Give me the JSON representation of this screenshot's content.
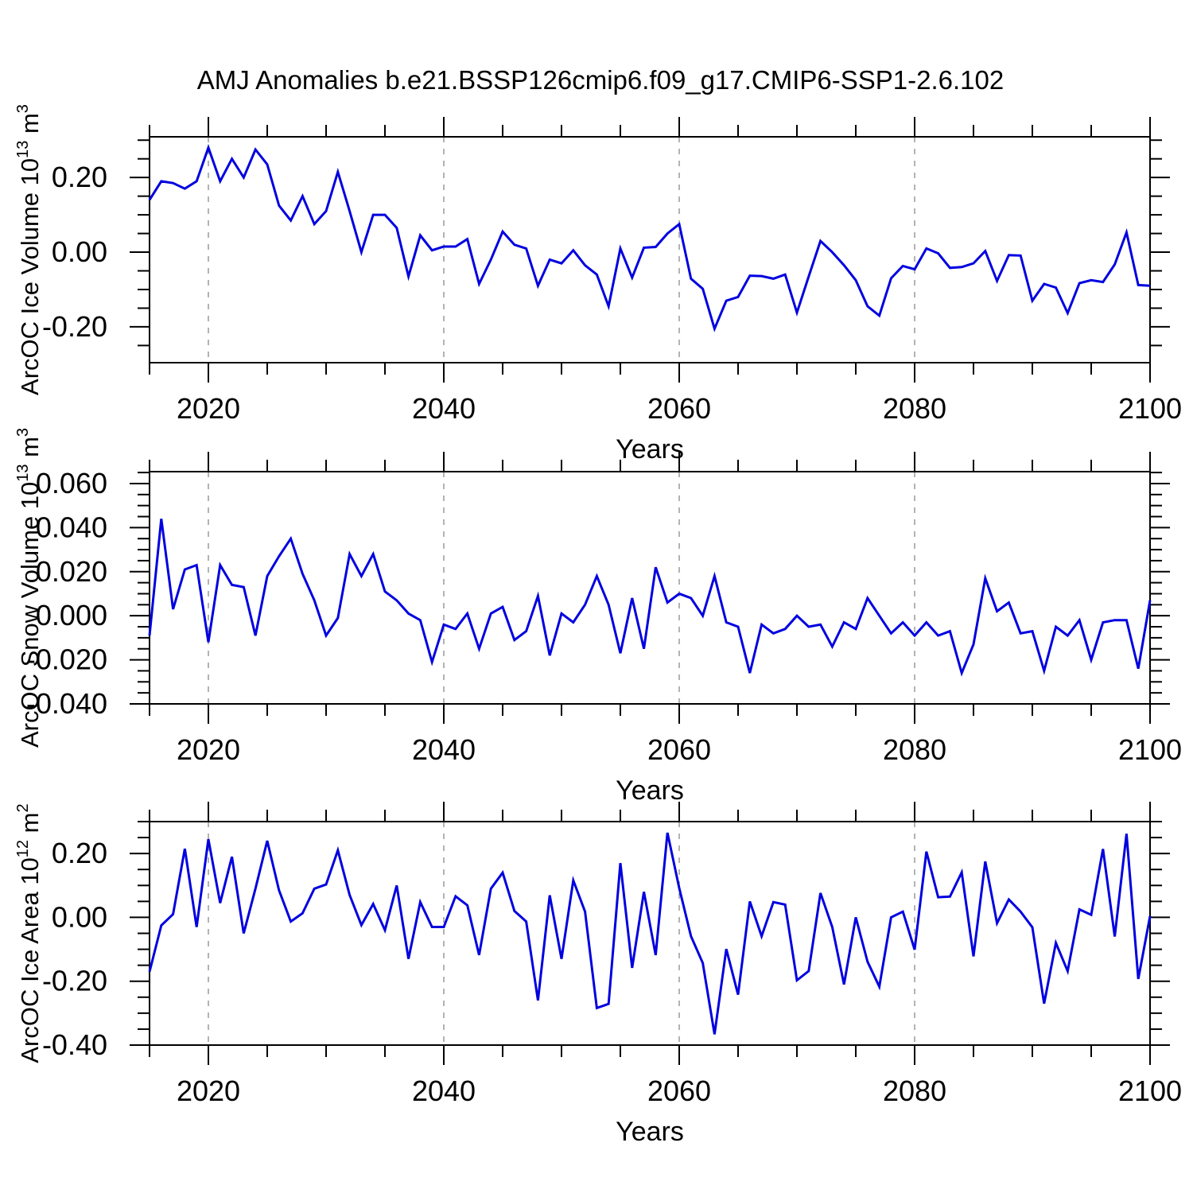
{
  "title": "AMJ Anomalies b.e21.BSSP126cmip6.f09_g17.CMIP6-SSP1-2.6.102",
  "chart_data": {
    "type": "line",
    "title": "AMJ Anomalies b.e21.BSSP126cmip6.f09_g17.CMIP6-SSP1-2.6.102",
    "xlabel": "Years",
    "legend_position": "none",
    "line_color": "#0000e0",
    "grid_color": "#8a8a8a",
    "axis_color": "#000000",
    "x_range": [
      2015,
      2100
    ],
    "x_ticks": [
      {
        "v": 2020,
        "label": "2020"
      },
      {
        "v": 2040,
        "label": "2040"
      },
      {
        "v": 2060,
        "label": "2060"
      },
      {
        "v": 2080,
        "label": "2080"
      },
      {
        "v": 2100,
        "label": "2100"
      }
    ],
    "x_minor_step": 5,
    "grid_years": [
      2020,
      2040,
      2060,
      2080
    ],
    "x": [
      2015,
      2016,
      2017,
      2018,
      2019,
      2020,
      2021,
      2022,
      2023,
      2024,
      2025,
      2026,
      2027,
      2028,
      2029,
      2030,
      2031,
      2032,
      2033,
      2034,
      2035,
      2036,
      2037,
      2038,
      2039,
      2040,
      2041,
      2042,
      2043,
      2044,
      2045,
      2046,
      2047,
      2048,
      2049,
      2050,
      2051,
      2052,
      2053,
      2054,
      2055,
      2056,
      2057,
      2058,
      2059,
      2060,
      2061,
      2062,
      2063,
      2064,
      2065,
      2066,
      2067,
      2068,
      2069,
      2070,
      2071,
      2072,
      2073,
      2074,
      2075,
      2076,
      2077,
      2078,
      2079,
      2080,
      2081,
      2082,
      2083,
      2084,
      2085,
      2086,
      2087,
      2088,
      2089,
      2090,
      2091,
      2092,
      2093,
      2094,
      2095,
      2096,
      2097,
      2098,
      2099,
      2100
    ],
    "subplots": [
      {
        "id": "ice-volume",
        "ylabel_parts": [
          {
            "t": "ArcOC Ice Volume 10"
          },
          {
            "t": "13",
            "sup": true
          },
          {
            "t": " m"
          },
          {
            "t": "3",
            "sup": true
          }
        ],
        "ylim": [
          -0.296,
          0.309
        ],
        "yticks": [
          {
            "v": 0.2,
            "label": "0.20"
          },
          {
            "v": 0.0,
            "label": "0.00"
          },
          {
            "v": -0.2,
            "label": "-0.20"
          }
        ],
        "y_minor_step": 0.05,
        "values": [
          0.14,
          0.19,
          0.185,
          0.17,
          0.19,
          0.28,
          0.19,
          0.25,
          0.2,
          0.275,
          0.235,
          0.125,
          0.085,
          0.15,
          0.075,
          0.11,
          0.215,
          0.11,
          0.0,
          0.1,
          0.1,
          0.065,
          -0.065,
          0.045,
          0.005,
          0.015,
          0.015,
          0.035,
          -0.085,
          -0.02,
          0.055,
          0.02,
          0.01,
          -0.09,
          -0.02,
          -0.03,
          0.005,
          -0.035,
          -0.06,
          -0.145,
          0.01,
          -0.068,
          0.012,
          0.014,
          0.05,
          0.075,
          -0.071,
          -0.098,
          -0.205,
          -0.13,
          -0.12,
          -0.063,
          -0.064,
          -0.071,
          -0.06,
          -0.162,
          -0.065,
          0.03,
          0.0,
          -0.035,
          -0.075,
          -0.145,
          -0.17,
          -0.07,
          -0.037,
          -0.046,
          0.01,
          -0.003,
          -0.042,
          -0.04,
          -0.03,
          0.003,
          -0.077,
          -0.008,
          -0.009,
          -0.13,
          -0.085,
          -0.095,
          -0.163,
          -0.083,
          -0.075,
          -0.08,
          -0.033,
          0.053,
          -0.088,
          -0.09
        ]
      },
      {
        "id": "snow-volume",
        "ylabel_parts": [
          {
            "t": "ArcOC Snow Volume 10"
          },
          {
            "t": "13",
            "sup": true
          },
          {
            "t": " m"
          },
          {
            "t": "3",
            "sup": true
          }
        ],
        "ylim": [
          -0.04,
          0.0654
        ],
        "yticks": [
          {
            "v": 0.06,
            "label": "0.060"
          },
          {
            "v": 0.04,
            "label": "0.040"
          },
          {
            "v": 0.02,
            "label": "0.020"
          },
          {
            "v": 0.0,
            "label": "0.000"
          },
          {
            "v": -0.02,
            "label": "-0.020"
          },
          {
            "v": -0.04,
            "label": "-0.040"
          }
        ],
        "y_minor_step": 0.005,
        "values": [
          -0.009,
          0.044,
          0.003,
          0.021,
          0.023,
          -0.012,
          0.023,
          0.014,
          0.013,
          -0.009,
          0.018,
          0.027,
          0.035,
          0.019,
          0.007,
          -0.009,
          -0.001,
          0.028,
          0.018,
          0.028,
          0.011,
          0.007,
          0.001,
          -0.002,
          -0.021,
          -0.004,
          -0.006,
          0.001,
          -0.015,
          0.001,
          0.004,
          -0.011,
          -0.007,
          0.009,
          -0.018,
          0.001,
          -0.003,
          0.005,
          0.018,
          0.005,
          -0.017,
          0.008,
          -0.015,
          0.022,
          0.006,
          0.01,
          0.008,
          0.0,
          0.018,
          -0.003,
          -0.005,
          -0.026,
          -0.004,
          -0.008,
          -0.006,
          0.0,
          -0.005,
          -0.004,
          -0.014,
          -0.003,
          -0.006,
          0.008,
          0.0,
          -0.008,
          -0.003,
          -0.009,
          -0.003,
          -0.009,
          -0.007,
          -0.026,
          -0.013,
          0.017,
          0.002,
          0.006,
          -0.008,
          -0.007,
          -0.025,
          -0.005,
          -0.009,
          -0.002,
          -0.02,
          -0.003,
          -0.002,
          -0.002,
          -0.024,
          0.007
        ]
      },
      {
        "id": "ice-area",
        "ylabel_parts": [
          {
            "t": "ArcOC Ice Area 10"
          },
          {
            "t": "12",
            "sup": true
          },
          {
            "t": " m"
          },
          {
            "t": "2",
            "sup": true
          }
        ],
        "ylim": [
          -0.4,
          0.3
        ],
        "yticks": [
          {
            "v": 0.2,
            "label": "0.20"
          },
          {
            "v": 0.0,
            "label": "0.00"
          },
          {
            "v": -0.2,
            "label": "-0.20"
          },
          {
            "v": -0.4,
            "label": "-0.40"
          }
        ],
        "y_minor_step": 0.05,
        "values": [
          -0.17,
          -0.025,
          0.01,
          0.215,
          -0.03,
          0.245,
          0.045,
          0.19,
          -0.05,
          0.09,
          0.24,
          0.085,
          -0.013,
          0.013,
          0.09,
          0.103,
          0.21,
          0.07,
          -0.024,
          0.042,
          -0.04,
          0.1,
          -0.13,
          0.048,
          -0.03,
          -0.03,
          0.066,
          0.038,
          -0.118,
          0.09,
          0.14,
          0.02,
          -0.013,
          -0.26,
          0.069,
          -0.13,
          0.116,
          0.018,
          -0.284,
          -0.271,
          0.17,
          -0.158,
          0.08,
          -0.118,
          0.265,
          0.092,
          -0.059,
          -0.143,
          -0.366,
          -0.099,
          -0.242,
          0.05,
          -0.059,
          0.048,
          0.04,
          -0.197,
          -0.168,
          0.076,
          -0.03,
          -0.21,
          0.0,
          -0.139,
          -0.217,
          0.0,
          0.018,
          -0.101,
          0.206,
          0.063,
          0.065,
          0.141,
          -0.122,
          0.175,
          -0.018,
          0.056,
          0.018,
          -0.031,
          -0.27,
          -0.08,
          -0.168,
          0.025,
          0.008,
          0.214,
          -0.06,
          0.262,
          -0.193,
          0.004
        ]
      }
    ]
  }
}
